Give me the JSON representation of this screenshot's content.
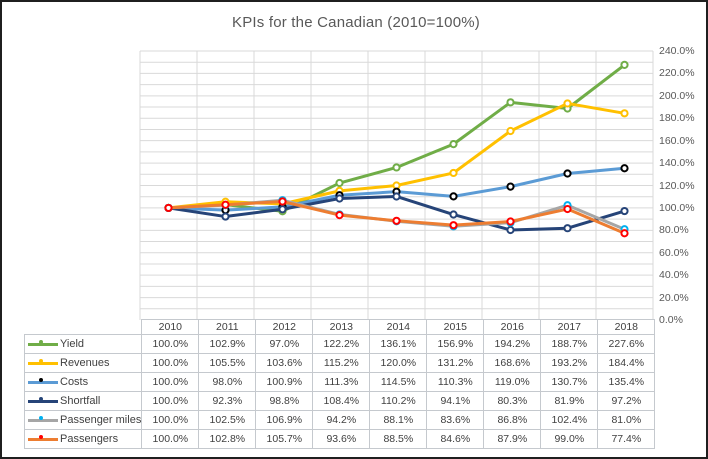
{
  "window": {
    "background": "#ffffff",
    "border_color": "#1f1f1f"
  },
  "chart_data": {
    "type": "line",
    "title": "KPIs for the Canadian (2010=100%)",
    "categories": [
      "2010",
      "2011",
      "2012",
      "2013",
      "2014",
      "2015",
      "2016",
      "2017",
      "2018"
    ],
    "series": [
      {
        "name": "Yield",
        "values": [
          100.0,
          102.9,
          97.0,
          122.2,
          136.1,
          156.9,
          194.2,
          188.7,
          227.6
        ],
        "line_color": "#70AD47",
        "marker_color": "#70AD47"
      },
      {
        "name": "Revenues",
        "values": [
          100.0,
          105.5,
          103.6,
          115.2,
          120.0,
          131.2,
          168.6,
          193.2,
          184.4
        ],
        "line_color": "#FFC000",
        "marker_color": "#FFC000"
      },
      {
        "name": "Costs",
        "values": [
          100.0,
          98.0,
          100.9,
          111.3,
          114.5,
          110.3,
          119.0,
          130.7,
          135.4
        ],
        "line_color": "#5B9BD5",
        "marker_color": "#000000"
      },
      {
        "name": "Shortfall",
        "values": [
          100.0,
          92.3,
          98.8,
          108.4,
          110.2,
          94.1,
          80.3,
          81.9,
          97.2
        ],
        "line_color": "#264478",
        "marker_color": "#264478"
      },
      {
        "name": "Passenger miles",
        "values": [
          100.0,
          102.5,
          106.9,
          94.2,
          88.1,
          83.6,
          86.8,
          102.4,
          81.0
        ],
        "line_color": "#A6A6A6",
        "marker_color": "#00B0F0"
      },
      {
        "name": "Passengers",
        "values": [
          100.0,
          102.8,
          105.7,
          93.6,
          88.5,
          84.6,
          87.9,
          99.0,
          77.4
        ],
        "line_color": "#ED7D31",
        "marker_color": "#FF0000"
      }
    ],
    "y_axis": {
      "position": "right",
      "min": 0,
      "max": 240,
      "major_step": 20,
      "minor_step": 10,
      "tick_labels": [
        "240.0%",
        "220.0%",
        "200.0%",
        "180.0%",
        "160.0%",
        "140.0%",
        "120.0%",
        "100.0%",
        "80.0%",
        "60.0%",
        "40.0%",
        "20.0%",
        "0.0%"
      ]
    },
    "value_format": "percent_1dp",
    "grid": true,
    "gridline_color": "#D9D9D9",
    "table_border_color": "#C5C9CE",
    "legend_position": "data-table",
    "data_table_shown": true,
    "marker_style": "circle-white-fill"
  }
}
